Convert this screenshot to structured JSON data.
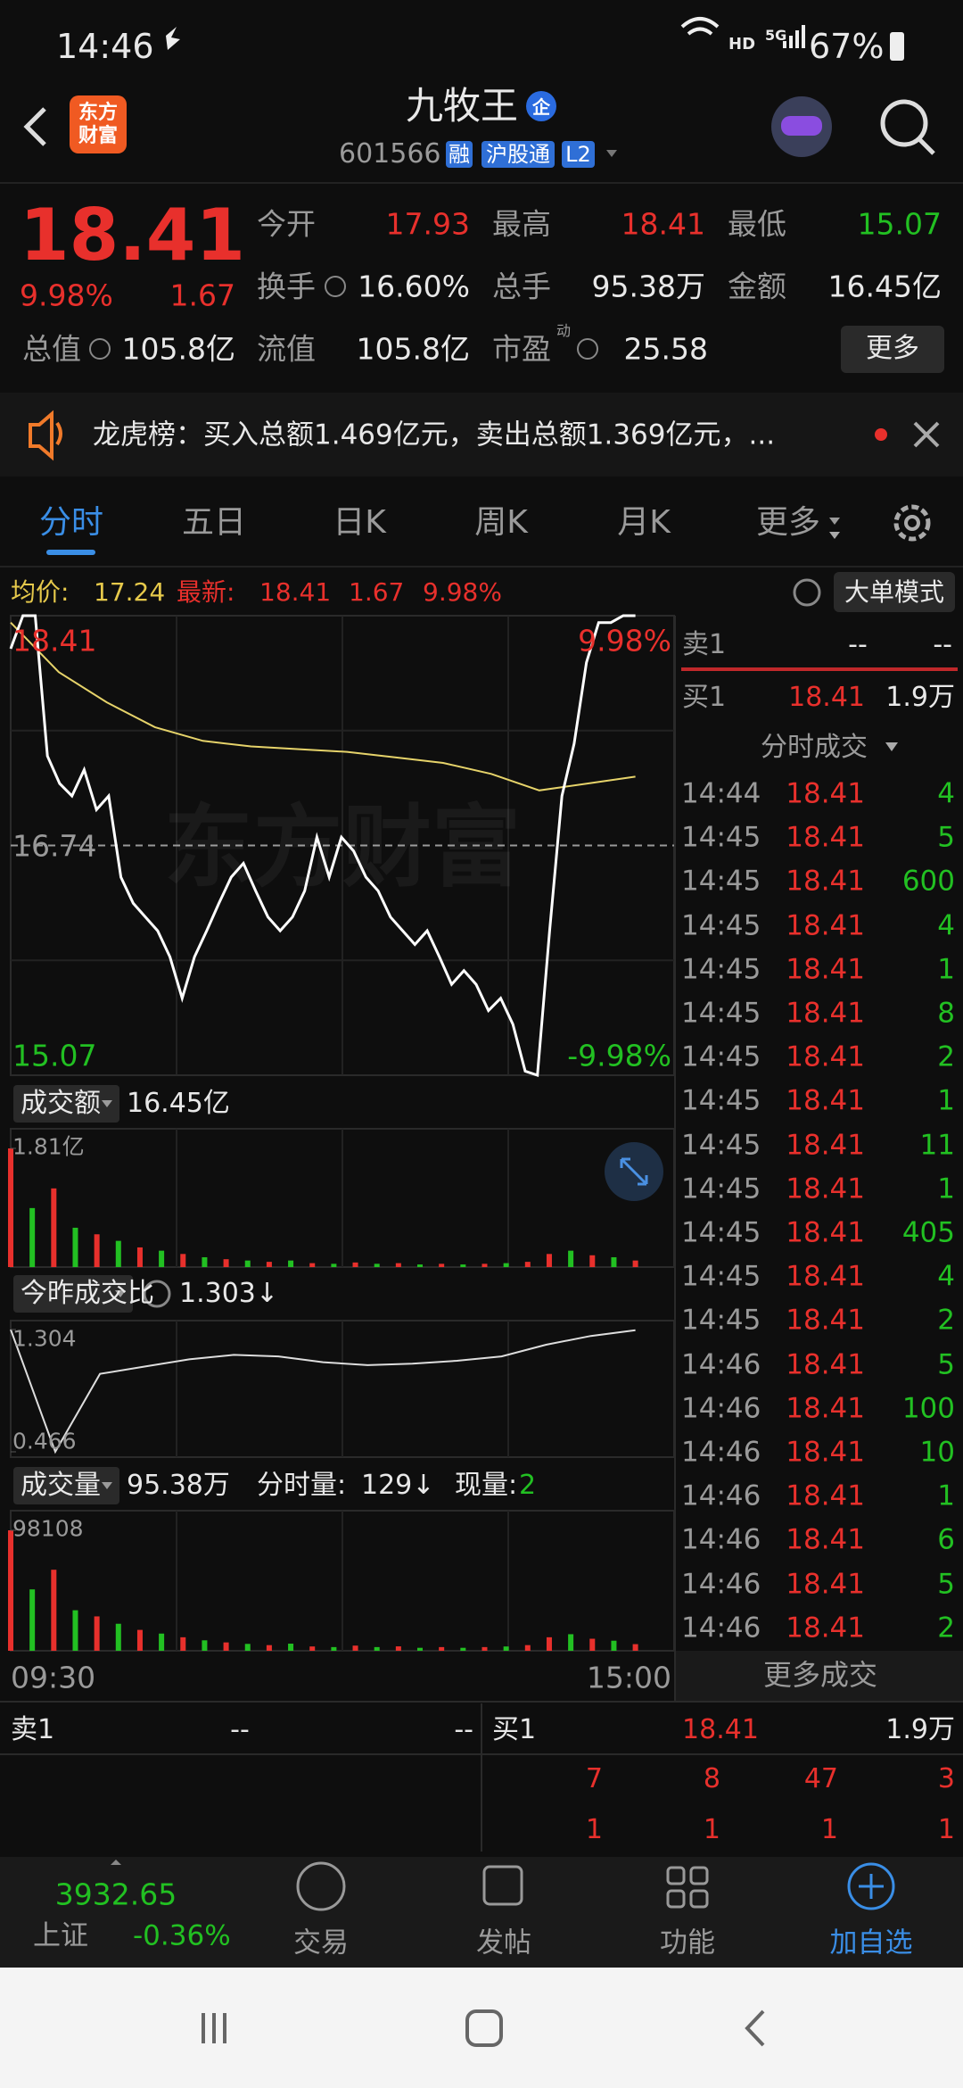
{
  "status_bar": {
    "time": "14:46",
    "network": "HD",
    "signal": "5G",
    "battery": "67%"
  },
  "header": {
    "logo": [
      "东方",
      "财富"
    ],
    "title": "九牧王",
    "badge": "企",
    "code": "601566",
    "tags": [
      "融",
      "沪股通",
      "L2"
    ]
  },
  "quote": {
    "price": "18.41",
    "change_pct": "9.98%",
    "change": "1.67",
    "more": "更多",
    "fields": [
      {
        "label": "今开",
        "value": "17.93",
        "color": "#e8302c"
      },
      {
        "label": "最高",
        "value": "18.41",
        "color": "#e8302c"
      },
      {
        "label": "最低",
        "value": "15.07",
        "color": "#22c022"
      },
      {
        "label": "换手",
        "value": "16.60%",
        "color": "#e8e8e8"
      },
      {
        "label": "总手",
        "value": "95.38万",
        "color": "#e8e8e8"
      },
      {
        "label": "金额",
        "value": "16.45亿",
        "color": "#e8e8e8"
      },
      {
        "label": "总值",
        "value": "105.8亿",
        "color": "#e8e8e8"
      },
      {
        "label": "流值",
        "value": "105.8亿",
        "color": "#e8e8e8"
      },
      {
        "label": "市盈",
        "superscript": "动",
        "value": "25.58",
        "color": "#e8e8e8"
      }
    ]
  },
  "notice": {
    "text": "龙虎榜：买入总额1.469亿元，卖出总额1.369亿元，..."
  },
  "tabs": [
    "分时",
    "五日",
    "日K",
    "周K",
    "月K",
    "更多"
  ],
  "info_bar": {
    "avg_label": "均价:",
    "avg": "17.24",
    "last_label": "最新:",
    "last": "18.41",
    "change": "1.67",
    "change_pct": "9.98%",
    "mode_button": "大单模式"
  },
  "chart": {
    "watermark": "东方财富",
    "colors": {
      "up": "#e8302c",
      "down": "#22c022",
      "line": "#ffffff",
      "avg": "#e6d36a"
    },
    "price": {
      "ylim": [
        15.07,
        18.41
      ],
      "yticks": [
        15.07,
        16.74,
        18.41
      ],
      "pct_top": "9.98%",
      "pct_bottom": "-9.98%",
      "values": [
        18.17,
        18.41,
        18.41,
        17.39,
        17.19,
        17.1,
        17.29,
        17.0,
        17.1,
        16.51,
        16.32,
        16.22,
        16.12,
        15.93,
        15.63,
        15.93,
        16.12,
        16.32,
        16.51,
        16.61,
        16.41,
        16.22,
        16.12,
        16.22,
        16.41,
        16.8,
        16.51,
        16.8,
        16.7,
        16.51,
        16.41,
        16.22,
        16.12,
        16.02,
        16.12,
        15.93,
        15.73,
        15.83,
        15.73,
        15.54,
        15.63,
        15.44,
        15.1,
        15.07,
        16.12,
        17.1,
        17.48,
        18.07,
        18.36,
        18.36,
        18.41,
        18.41
      ],
      "avg_values": [
        18.36,
        18.0,
        17.78,
        17.6,
        17.5,
        17.46,
        17.44,
        17.42,
        17.38,
        17.34,
        17.26,
        17.14,
        17.19,
        17.24
      ]
    },
    "amount": {
      "label": "成交额",
      "total": "16.45亿",
      "ylim": [
        0,
        1.81
      ],
      "yticks": [
        {
          "value": 1.81,
          "label": "1.81亿"
        }
      ],
      "values": [
        1.81,
        0.9,
        1.2,
        0.6,
        0.5,
        0.4,
        0.3,
        0.25,
        0.2,
        0.15,
        0.12,
        0.1,
        0.08,
        0.1,
        0.06,
        0.05,
        0.07,
        0.05,
        0.06,
        0.04,
        0.05,
        0.04,
        0.05,
        0.06,
        0.08,
        0.2,
        0.25,
        0.18,
        0.15,
        0.1
      ]
    },
    "ratio": {
      "label": "今昨成交比",
      "current": "1.303↓",
      "ylim": [
        0.466,
        1.304
      ],
      "yticks": [
        0.466,
        1.304
      ],
      "values": [
        1.304,
        0.466,
        1.0,
        1.05,
        1.1,
        1.13,
        1.12,
        1.08,
        1.06,
        1.07,
        1.09,
        1.12,
        1.2,
        1.26,
        1.3
      ]
    },
    "volume": {
      "label": "成交量",
      "total": "95.38万",
      "minute_label": "分时量:",
      "minute": "129↓",
      "now_label": "现量:",
      "now": "2",
      "ylim": [
        0,
        98108
      ],
      "yticks": [
        98108
      ],
      "values": [
        98108,
        50000,
        66000,
        33000,
        28000,
        22000,
        17000,
        14000,
        11000,
        8500,
        6800,
        5600,
        4600,
        5800,
        3500,
        3000,
        4200,
        3000,
        3600,
        2400,
        3000,
        2400,
        3000,
        3500,
        4600,
        11000,
        13500,
        9800,
        8200,
        5400
      ]
    },
    "bar_up": [
      true,
      false,
      true,
      false,
      true,
      false,
      true,
      false,
      true,
      false,
      true,
      false,
      true,
      false,
      true,
      false,
      true,
      false,
      true,
      false,
      true,
      false,
      true,
      false,
      true,
      true,
      false,
      true,
      false,
      true
    ],
    "time_labels": [
      "09:30",
      "15:00"
    ]
  },
  "side": {
    "ask": {
      "label": "卖1",
      "price": "--",
      "qty": "--"
    },
    "bid": {
      "label": "买1",
      "price": "18.41",
      "qty": "1.9万"
    },
    "trades_title": "分时成交",
    "trades": [
      [
        "14:44",
        "18.41",
        "4"
      ],
      [
        "14:45",
        "18.41",
        "5"
      ],
      [
        "14:45",
        "18.41",
        "600"
      ],
      [
        "14:45",
        "18.41",
        "4"
      ],
      [
        "14:45",
        "18.41",
        "1"
      ],
      [
        "14:45",
        "18.41",
        "8"
      ],
      [
        "14:45",
        "18.41",
        "2"
      ],
      [
        "14:45",
        "18.41",
        "1"
      ],
      [
        "14:45",
        "18.41",
        "11"
      ],
      [
        "14:45",
        "18.41",
        "1"
      ],
      [
        "14:45",
        "18.41",
        "405"
      ],
      [
        "14:45",
        "18.41",
        "4"
      ],
      [
        "14:45",
        "18.41",
        "2"
      ],
      [
        "14:46",
        "18.41",
        "5"
      ],
      [
        "14:46",
        "18.41",
        "100"
      ],
      [
        "14:46",
        "18.41",
        "10"
      ],
      [
        "14:46",
        "18.41",
        "1"
      ],
      [
        "14:46",
        "18.41",
        "6"
      ],
      [
        "14:46",
        "18.41",
        "5"
      ],
      [
        "14:46",
        "18.41",
        "2"
      ]
    ],
    "more": "更多成交"
  },
  "order_book": {
    "ask": {
      "label": "卖1",
      "price": "--",
      "qty": "--"
    },
    "bid": {
      "label": "买1",
      "price": "18.41",
      "qty": "1.9万"
    },
    "rows": [
      [
        "7",
        "8",
        "47",
        "3"
      ],
      [
        "1",
        "1",
        "1",
        "1"
      ]
    ]
  },
  "bottom_nav": {
    "index_value": "3932.65",
    "index_name": "上证",
    "index_change": "-0.36%",
    "items": [
      "交易",
      "发帖",
      "功能",
      "加自选"
    ]
  }
}
